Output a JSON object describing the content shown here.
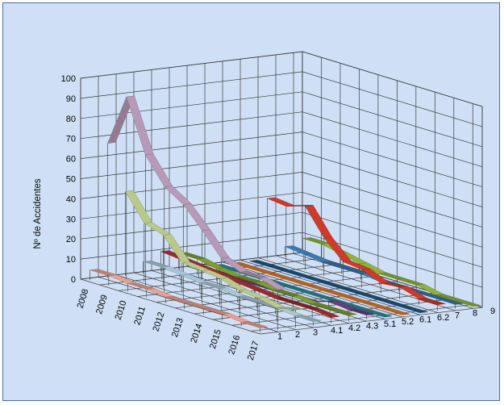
{
  "chart_data": {
    "type": "line-3d",
    "title": "",
    "ylabel": "Nº de Accidentes",
    "xlabel": "",
    "ylim": [
      0,
      100
    ],
    "y_ticks": [
      "0",
      "10",
      "20",
      "30",
      "40",
      "50",
      "60",
      "70",
      "80",
      "90",
      "100"
    ],
    "categories": [
      "2008",
      "2009",
      "2010",
      "2011",
      "2012",
      "2013",
      "2014",
      "2015",
      "2016",
      "2017"
    ],
    "series": [
      {
        "name": "1",
        "color": "#e8a090",
        "values": [
          5,
          5,
          4,
          4,
          3,
          3,
          3,
          3,
          2,
          2
        ]
      },
      {
        "name": "2",
        "color": "#b69ab8",
        "values": [
          67,
          93,
          67,
          54,
          48,
          38,
          27,
          23,
          23,
          20
        ]
      },
      {
        "name": "3",
        "color": "#b8c98a",
        "values": [
          42,
          29,
          26,
          15,
          14,
          13,
          10,
          9,
          7,
          9
        ]
      },
      {
        "name": "4.1",
        "color": "#a9c6d8",
        "values": [
          6,
          6,
          5,
          4,
          4,
          3,
          3,
          3,
          2,
          2
        ]
      },
      {
        "name": "4.2",
        "color": "#9a2b2b",
        "values": [
          10,
          9,
          8,
          7,
          6,
          5,
          4,
          4,
          4,
          3
        ]
      },
      {
        "name": "4.3",
        "color": "#7c9d2f",
        "values": [
          8,
          8,
          6,
          5,
          5,
          4,
          4,
          3,
          3,
          3
        ]
      },
      {
        "name": "5.1",
        "color": "#6b3e78",
        "values": [
          0,
          0,
          0,
          0,
          0,
          0,
          0,
          3,
          2,
          2
        ]
      },
      {
        "name": "5.2",
        "color": "#2f8a9a",
        "values": [
          0,
          0,
          0,
          0,
          0,
          0,
          0,
          0,
          0,
          0
        ]
      },
      {
        "name": "6.1",
        "color": "#e07a2c",
        "values": [
          0,
          0,
          0,
          0,
          0,
          0,
          0,
          0,
          0,
          0
        ]
      },
      {
        "name": "6.2",
        "color": "#1f5a8a",
        "values": [
          0,
          0,
          0,
          0,
          0,
          0,
          0,
          0,
          0,
          0
        ]
      },
      {
        "name": "7",
        "color": "#cc3b2c",
        "values": [
          30,
          29,
          32,
          19,
          10,
          9,
          5,
          6,
          3,
          3
        ]
      },
      {
        "name": "8",
        "color": "#3a78b0",
        "values": [
          5,
          4,
          3,
          3,
          3,
          2,
          2,
          2,
          2,
          2
        ]
      },
      {
        "name": "9",
        "color": "#8fb33a",
        "values": [
          8,
          8,
          6,
          4,
          2,
          2,
          2,
          0,
          0,
          0
        ]
      }
    ]
  }
}
